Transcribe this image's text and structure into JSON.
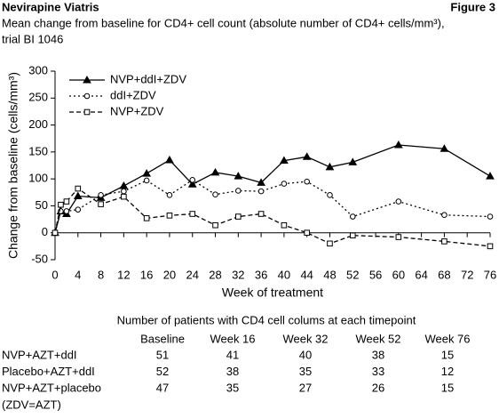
{
  "header": {
    "left": "Nevirapine Viatris",
    "right": "Figure 3"
  },
  "chart_data": {
    "type": "line",
    "title": "Mean change from baseline for CD4+ cell count (absolute number of CD4+ cells/mm³),",
    "subtitle": "trial BI 1046",
    "x_label": "Week of treatment",
    "y_label": "Change from baseline (cells/mm³)",
    "x": [
      0,
      1,
      2,
      4,
      8,
      12,
      16,
      20,
      24,
      28,
      32,
      36,
      40,
      44,
      48,
      52,
      60,
      68,
      76
    ],
    "series": [
      {
        "name": "NVP+ddI+ZDV",
        "color": "#000000",
        "style": "solid",
        "marker": "triangle",
        "values": [
          0,
          40,
          35,
          68,
          65,
          87,
          110,
          135,
          90,
          112,
          105,
          93,
          134,
          141,
          122,
          131,
          163,
          156,
          105
        ]
      },
      {
        "name": "ddI+ZDV",
        "color": "#000000",
        "style": "dotted",
        "marker": "circle",
        "values": [
          0,
          40,
          40,
          43,
          70,
          77,
          97,
          70,
          98,
          71,
          78,
          77,
          91,
          95,
          70,
          30,
          58,
          33,
          30
        ]
      },
      {
        "name": "NVP+ZDV",
        "color": "#000000",
        "style": "dashed",
        "marker": "square",
        "values": [
          0,
          52,
          58,
          82,
          53,
          67,
          27,
          32,
          35,
          14,
          30,
          35,
          14,
          0,
          -20,
          -5,
          -8,
          -16,
          -25
        ]
      }
    ],
    "xlim": [
      0,
      76
    ],
    "xticks": [
      0,
      4,
      8,
      12,
      16,
      20,
      24,
      28,
      32,
      36,
      40,
      44,
      48,
      52,
      56,
      60,
      64,
      68,
      72,
      76
    ],
    "ylim": [
      -50,
      300
    ],
    "yticks": [
      -50,
      0,
      50,
      100,
      150,
      200,
      250,
      300
    ],
    "legend": "upper-left"
  },
  "table": {
    "title": "Number of patients with CD4 cell colums at each timepoint",
    "columns": [
      "Baseline",
      "Week 16",
      "Week 32",
      "Week 52",
      "Week 76"
    ],
    "rows": [
      {
        "label": "NVP+AZT+ddI",
        "values": [
          51,
          41,
          40,
          38,
          15
        ]
      },
      {
        "label": "Placebo+AZT+ddI",
        "values": [
          52,
          38,
          35,
          33,
          12
        ]
      },
      {
        "label": "NVP+AZT+placebo",
        "values": [
          47,
          35,
          27,
          26,
          15
        ]
      }
    ],
    "note": "(ZDV=AZT)"
  }
}
